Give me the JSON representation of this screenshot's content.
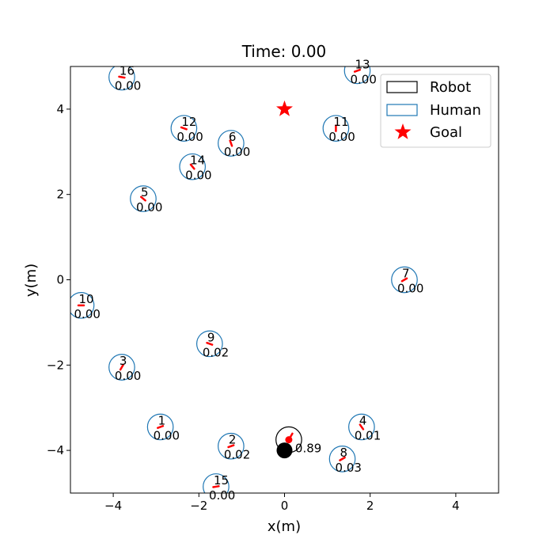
{
  "chart_data": {
    "type": "scatter",
    "title": "Time: 0.00",
    "xlabel": "x(m)",
    "ylabel": "y(m)",
    "xlim": [
      -5,
      5
    ],
    "ylim": [
      -5,
      5
    ],
    "xticks": [
      -4,
      -2,
      0,
      2,
      4
    ],
    "yticks": [
      -4,
      -2,
      0,
      2,
      4
    ],
    "grid": false,
    "legend_position": "top-right",
    "legend": [
      {
        "label": "Robot",
        "marker": "open-square",
        "color": "#000000"
      },
      {
        "label": "Human",
        "marker": "open-square",
        "color": "#1f77b4"
      },
      {
        "label": "Goal",
        "marker": "star",
        "color": "#ff0000"
      }
    ],
    "human_radius": 0.3,
    "heading_color": "#ff0000",
    "goal": {
      "x": 0.0,
      "y": 4.0,
      "color": "#ff0000"
    },
    "robot": {
      "x": 0.1,
      "y": -3.75,
      "radius": 0.3,
      "value": "0.89",
      "start": {
        "x": 0.0,
        "y": -4.0
      },
      "color": "#000000",
      "heading_deg": 60
    },
    "humans": [
      {
        "id": "1",
        "x": -2.9,
        "y": -3.45,
        "value": "0.00",
        "heading_deg": 200
      },
      {
        "id": "2",
        "x": -1.25,
        "y": -3.9,
        "value": "0.02",
        "heading_deg": 200
      },
      {
        "id": "3",
        "x": -3.8,
        "y": -2.05,
        "value": "0.00",
        "heading_deg": 60
      },
      {
        "id": "4",
        "x": 1.8,
        "y": -3.45,
        "value": "0.01",
        "heading_deg": 125
      },
      {
        "id": "5",
        "x": -3.3,
        "y": 1.9,
        "value": "0.00",
        "heading_deg": 140
      },
      {
        "id": "6",
        "x": -1.25,
        "y": 3.2,
        "value": "0.00",
        "heading_deg": 110
      },
      {
        "id": "7",
        "x": 2.8,
        "y": 0.0,
        "value": "0.00",
        "heading_deg": 210
      },
      {
        "id": "8",
        "x": 1.35,
        "y": -4.2,
        "value": "0.03",
        "heading_deg": 210
      },
      {
        "id": "9",
        "x": -1.75,
        "y": -1.5,
        "value": "0.02",
        "heading_deg": 160
      },
      {
        "id": "10",
        "x": -4.75,
        "y": -0.6,
        "value": "0.00",
        "heading_deg": 180
      },
      {
        "id": "11",
        "x": 1.2,
        "y": 3.55,
        "value": "0.00",
        "heading_deg": 270
      },
      {
        "id": "12",
        "x": -2.35,
        "y": 3.55,
        "value": "0.00",
        "heading_deg": 340
      },
      {
        "id": "13",
        "x": 1.7,
        "y": 4.9,
        "value": "0.00",
        "heading_deg": 20
      },
      {
        "id": "14",
        "x": -2.15,
        "y": 2.65,
        "value": "0.00",
        "heading_deg": 130
      },
      {
        "id": "15",
        "x": -1.6,
        "y": -4.85,
        "value": "0.00",
        "heading_deg": 10
      },
      {
        "id": "16",
        "x": -3.8,
        "y": 4.75,
        "value": "0.00",
        "heading_deg": 350
      }
    ]
  }
}
